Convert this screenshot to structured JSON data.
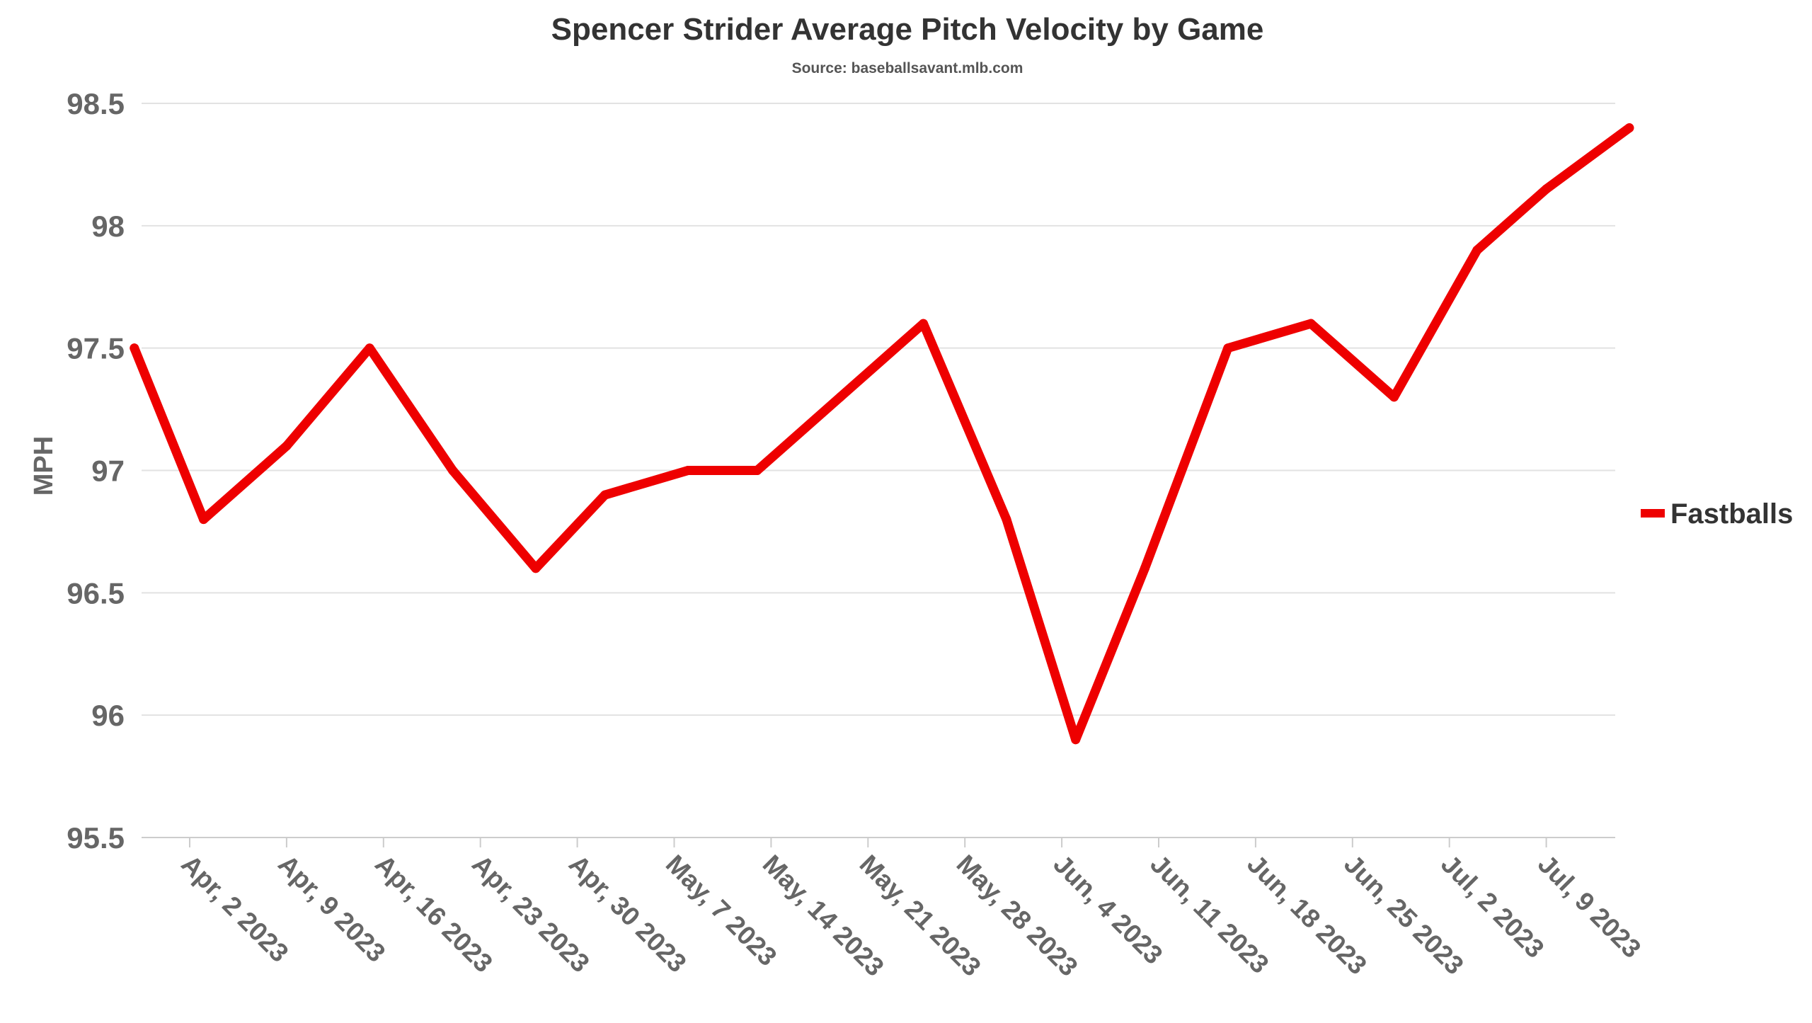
{
  "chart_data": {
    "type": "line",
    "title": "Spencer Strider Average Pitch Velocity by Game",
    "subtitle": "Source: baseballsavant.mlb.com",
    "xlabel": "",
    "ylabel": "MPH",
    "ylim": [
      95.5,
      98.5
    ],
    "y_ticks": [
      "95.5",
      "96",
      "96.5",
      "97",
      "97.5",
      "98",
      "98.5"
    ],
    "x_ticks": [
      "Apr, 2 2023",
      "Apr, 9 2023",
      "Apr, 16 2023",
      "Apr, 23 2023",
      "Apr, 30 2023",
      "May, 7 2023",
      "May, 14 2023",
      "May, 21 2023",
      "May, 28 2023",
      "Jun, 4 2023",
      "Jun, 11 2023",
      "Jun, 18 2023",
      "Jun, 25 2023",
      "Jul, 2 2023",
      "Jul, 9 2023"
    ],
    "grid": true,
    "legend_position": "right",
    "series": [
      {
        "name": "Fastballs",
        "color": "#ee0000",
        "x": [
          "2023-03-29",
          "2023-04-03",
          "2023-04-09",
          "2023-04-15",
          "2023-04-21",
          "2023-04-27",
          "2023-05-02",
          "2023-05-08",
          "2023-05-13",
          "2023-05-19",
          "2023-05-25",
          "2023-05-31",
          "2023-06-05",
          "2023-06-10",
          "2023-06-16",
          "2023-06-22",
          "2023-06-28",
          "2023-07-04",
          "2023-07-09",
          "2023-07-15"
        ],
        "values": [
          97.5,
          96.8,
          97.1,
          97.5,
          97.0,
          96.6,
          96.9,
          97.0,
          97.0,
          97.3,
          97.6,
          96.8,
          95.9,
          96.6,
          97.5,
          97.6,
          97.3,
          97.9,
          98.15,
          98.4
        ]
      }
    ]
  }
}
